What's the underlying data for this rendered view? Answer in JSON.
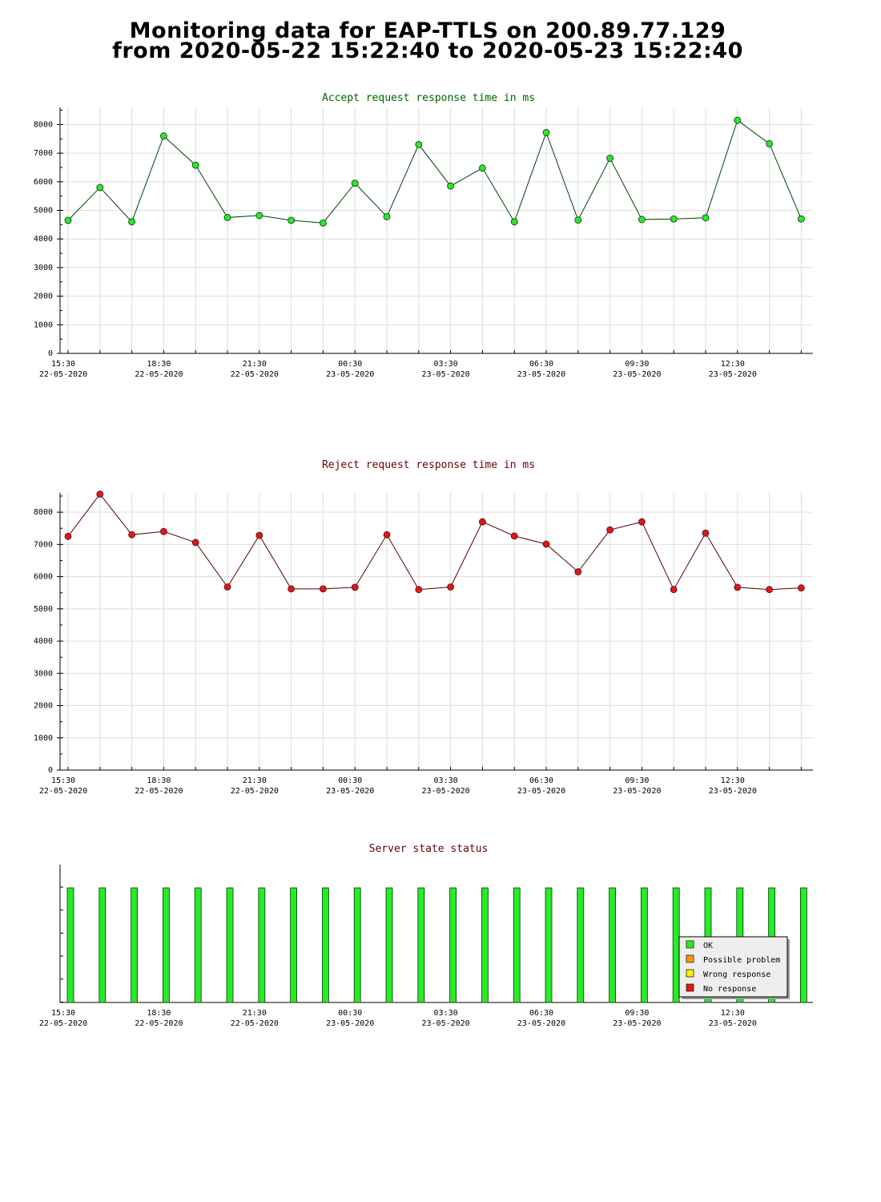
{
  "page": {
    "title_line1": "Monitoring data for EAP-TTLS on 200.89.77.129",
    "title_line2": "from 2020-05-22 15:22:40 to 2020-05-23 15:22:40"
  },
  "colors": {
    "accept_line": "#004400",
    "accept_marker": "#22ee22",
    "reject_line": "#550000",
    "reject_marker": "#ee1111",
    "accept_title": "#006600",
    "reject_title": "#660000",
    "status_title": "#660000",
    "grid": "#dddddd",
    "ok": "#22ee22",
    "possible_problem": "#ff9900",
    "wrong_response": "#ffee00",
    "no_response": "#ee1111"
  },
  "chart_data": [
    {
      "type": "line",
      "title": "Accept request response time in ms",
      "x_tick_labels": [
        [
          "15:30",
          "22-05-2020"
        ],
        [
          "18:30",
          "22-05-2020"
        ],
        [
          "21:30",
          "22-05-2020"
        ],
        [
          "00:30",
          "23-05-2020"
        ],
        [
          "03:30",
          "23-05-2020"
        ],
        [
          "06:30",
          "23-05-2020"
        ],
        [
          "09:30",
          "23-05-2020"
        ],
        [
          "12:30",
          "23-05-2020"
        ]
      ],
      "x": [
        "15:30",
        "16:30",
        "17:30",
        "18:30",
        "19:30",
        "20:30",
        "21:30",
        "22:30",
        "23:30",
        "00:30",
        "01:30",
        "02:30",
        "03:30",
        "04:30",
        "05:30",
        "06:30",
        "07:30",
        "08:30",
        "09:30",
        "10:30",
        "11:30",
        "12:30",
        "13:30",
        "14:30"
      ],
      "values": [
        4650,
        5800,
        4600,
        7600,
        6580,
        4750,
        4820,
        4650,
        4560,
        5950,
        4780,
        7300,
        5850,
        6480,
        4600,
        7720,
        4660,
        6820,
        4680,
        4700,
        4740,
        8150,
        7330,
        4700
      ],
      "y_ticks": [
        0,
        1000,
        2000,
        3000,
        4000,
        5000,
        6000,
        7000,
        8000
      ],
      "ylim": [
        0,
        8600
      ],
      "grid": true
    },
    {
      "type": "line",
      "title": "Reject request response time in ms",
      "x_tick_labels": [
        [
          "15:30",
          "22-05-2020"
        ],
        [
          "18:30",
          "22-05-2020"
        ],
        [
          "21:30",
          "22-05-2020"
        ],
        [
          "00:30",
          "23-05-2020"
        ],
        [
          "03:30",
          "23-05-2020"
        ],
        [
          "06:30",
          "23-05-2020"
        ],
        [
          "09:30",
          "23-05-2020"
        ],
        [
          "12:30",
          "23-05-2020"
        ]
      ],
      "x": [
        "15:30",
        "16:30",
        "17:30",
        "18:30",
        "19:30",
        "20:30",
        "21:30",
        "22:30",
        "23:30",
        "00:30",
        "01:30",
        "02:30",
        "03:30",
        "04:30",
        "05:30",
        "06:30",
        "07:30",
        "08:30",
        "09:30",
        "10:30",
        "11:30",
        "12:30",
        "13:30",
        "14:30"
      ],
      "values": [
        7250,
        8560,
        7300,
        7400,
        7060,
        5680,
        7280,
        5620,
        5620,
        5670,
        7300,
        5600,
        5680,
        7700,
        7260,
        7010,
        6150,
        7450,
        7700,
        5600,
        7350,
        5670,
        5600,
        5650
      ],
      "y_ticks": [
        0,
        1000,
        2000,
        3000,
        4000,
        5000,
        6000,
        7000,
        8000
      ],
      "ylim": [
        0,
        8600
      ],
      "grid": true
    },
    {
      "type": "bar",
      "title": "Server state status",
      "x_tick_labels": [
        [
          "15:30",
          "22-05-2020"
        ],
        [
          "18:30",
          "22-05-2020"
        ],
        [
          "21:30",
          "22-05-2020"
        ],
        [
          "00:30",
          "23-05-2020"
        ],
        [
          "03:30",
          "23-05-2020"
        ],
        [
          "06:30",
          "23-05-2020"
        ],
        [
          "09:30",
          "23-05-2020"
        ],
        [
          "12:30",
          "23-05-2020"
        ]
      ],
      "x": [
        "15:30",
        "16:30",
        "17:30",
        "18:30",
        "19:30",
        "20:30",
        "21:30",
        "22:30",
        "23:30",
        "00:30",
        "01:30",
        "02:30",
        "03:30",
        "04:30",
        "05:30",
        "06:30",
        "07:30",
        "08:30",
        "09:30",
        "10:30",
        "11:30",
        "12:30",
        "13:30",
        "14:30"
      ],
      "states": [
        "OK",
        "OK",
        "OK",
        "OK",
        "OK",
        "OK",
        "OK",
        "OK",
        "OK",
        "OK",
        "OK",
        "OK",
        "OK",
        "OK",
        "OK",
        "OK",
        "OK",
        "OK",
        "OK",
        "OK",
        "OK",
        "OK",
        "OK",
        "OK"
      ],
      "legend": [
        "OK",
        "Possible problem",
        "Wrong response",
        "No response"
      ],
      "legend_position": "bottom-right",
      "grid": false
    }
  ]
}
